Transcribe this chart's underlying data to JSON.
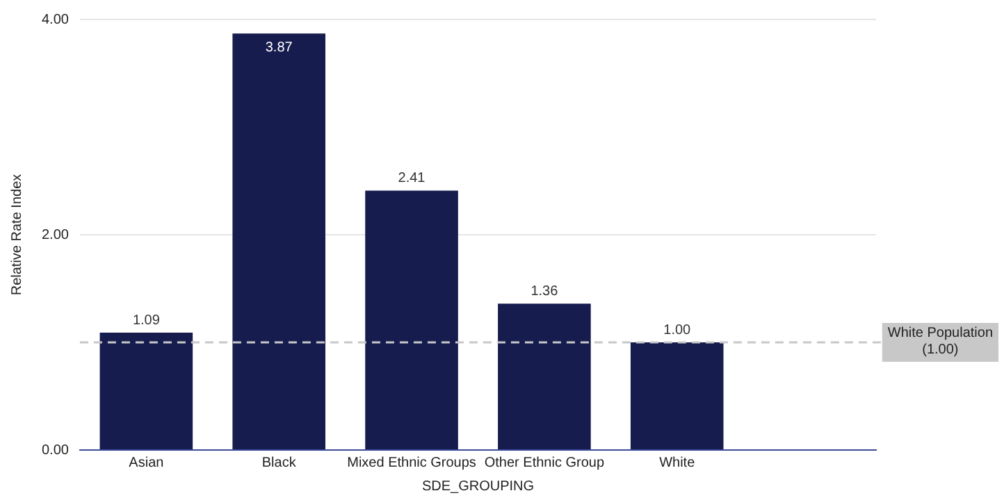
{
  "chart_data": {
    "type": "bar",
    "xlabel": "SDE_GROUPING",
    "ylabel": "Relative Rate Index",
    "categories": [
      "Asian",
      "Black",
      "Mixed Ethnic Groups",
      "Other Ethnic Group",
      "White",
      null
    ],
    "values": [
      1.09,
      3.87,
      2.41,
      1.36,
      1.0,
      null
    ],
    "value_labels": [
      "1.09",
      "3.87",
      "2.41",
      "1.36",
      "1.00",
      null
    ],
    "color": "#161c4e",
    "ylim": [
      0,
      4
    ],
    "yticks": [
      {
        "value": 0,
        "label": "0.00"
      },
      {
        "value": 2,
        "label": "2.00"
      },
      {
        "value": 4,
        "label": "4.00"
      }
    ],
    "grid": "y",
    "legend": false,
    "ref_lines": [
      {
        "axis": "y",
        "value": 1,
        "label": "White Population\n(1.00)",
        "color": "#c8c8c8",
        "line_style": "dashed"
      }
    ]
  }
}
